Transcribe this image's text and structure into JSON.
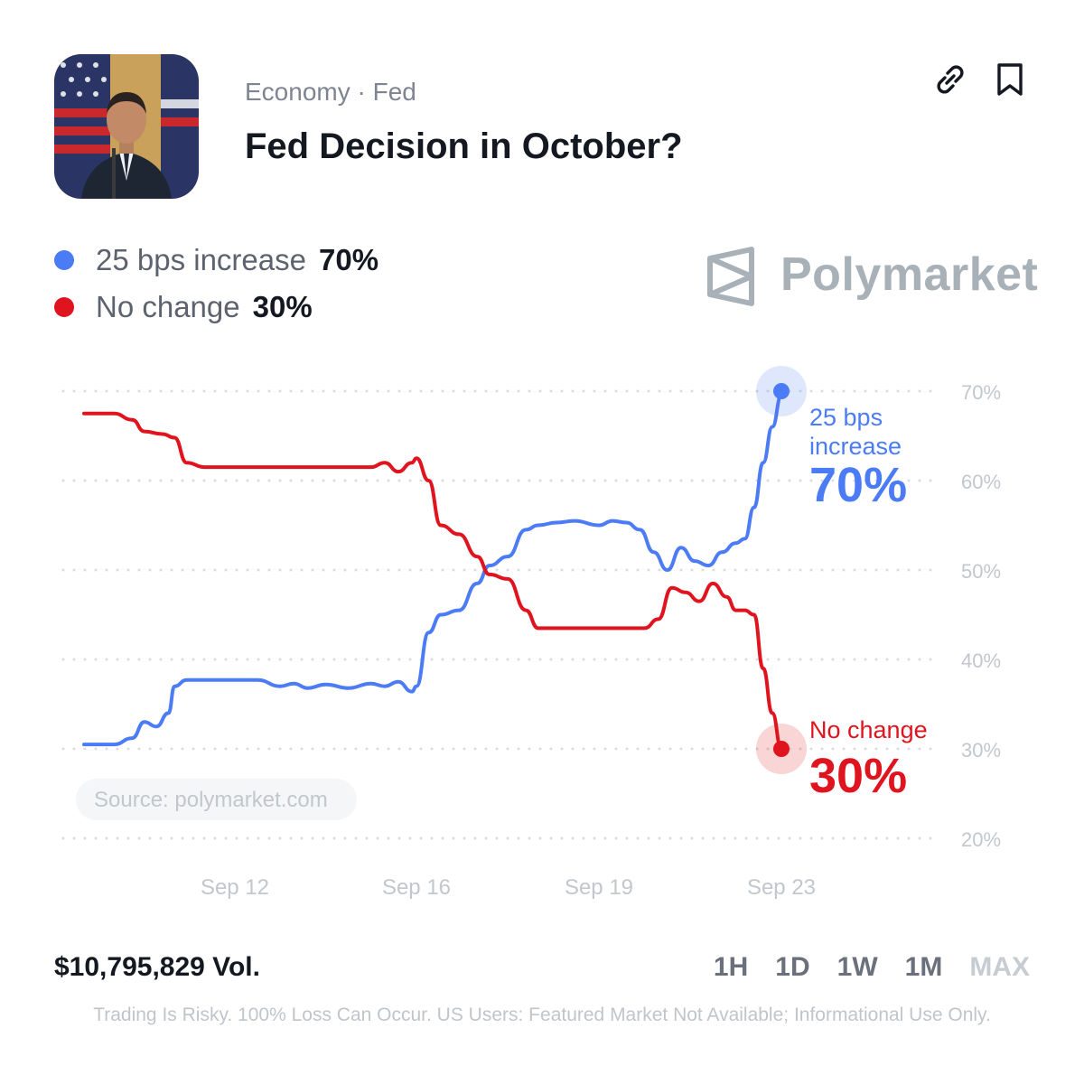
{
  "header": {
    "category": "Economy · Fed",
    "title": "Fed Decision in October?"
  },
  "legend": [
    {
      "label": "25 bps increase",
      "value": "70%",
      "color": "#4b7bf5"
    },
    {
      "label": "No change",
      "value": "30%",
      "color": "#e0141e"
    }
  ],
  "brand": {
    "name": "Polymarket",
    "color": "#a8b0b8"
  },
  "chart_data": {
    "type": "line",
    "ylim": [
      20,
      70
    ],
    "yticks": [
      "70%",
      "60%",
      "50%",
      "40%",
      "30%",
      "20%"
    ],
    "xticks": [
      "Sep 12",
      "Sep 16",
      "Sep 19",
      "Sep 23"
    ],
    "source": "Source: polymarket.com",
    "grid": true,
    "series": [
      {
        "name": "25 bps increase",
        "color": "#4b7bf5",
        "end_label_line1": "25 bps",
        "end_label_line2": "increase",
        "end_value": "70%",
        "x": [
          9.5,
          9.8,
          10.0,
          10.3,
          10.5,
          10.7,
          10.9,
          11.0,
          11.2,
          11.5,
          12.0,
          12.5,
          13.0,
          13.3,
          13.6,
          14.0,
          14.5,
          15.0,
          15.3,
          15.6,
          15.9,
          16.0,
          16.2,
          16.4,
          16.7,
          17.0,
          17.2,
          17.5,
          17.8,
          18.0,
          18.3,
          18.6,
          19.0,
          19.3,
          19.6,
          19.9,
          20.2,
          20.5,
          20.8,
          21.1,
          21.4,
          21.7,
          22.0,
          22.2,
          22.4,
          22.6,
          22.8,
          23.0
        ],
        "values": [
          30.5,
          30.5,
          30.5,
          31.2,
          33.0,
          32.5,
          34.0,
          37.0,
          37.7,
          37.7,
          37.7,
          37.7,
          37.0,
          37.3,
          36.8,
          37.2,
          36.8,
          37.3,
          37.0,
          37.5,
          36.4,
          37.0,
          43.0,
          45.0,
          45.5,
          48.5,
          50.5,
          51.5,
          54.5,
          55.0,
          55.3,
          55.5,
          55.0,
          55.5,
          55.3,
          54.5,
          52.0,
          50.0,
          52.5,
          51.0,
          50.5,
          52.0,
          53.0,
          53.5,
          57.0,
          62.0,
          66.0,
          69.5
        ]
      },
      {
        "name": "No change",
        "color": "#e0141e",
        "end_label_line1": "No change",
        "end_value": "30%",
        "x": [
          9.5,
          10.0,
          10.3,
          10.5,
          10.8,
          11.0,
          11.2,
          11.5,
          12.0,
          12.5,
          13.0,
          13.5,
          14.0,
          14.5,
          15.0,
          15.3,
          15.6,
          15.9,
          16.0,
          16.2,
          16.4,
          16.7,
          17.0,
          17.2,
          17.5,
          17.8,
          18.0,
          18.3,
          18.6,
          19.0,
          19.5,
          20.0,
          20.3,
          20.6,
          20.9,
          21.2,
          21.5,
          21.8,
          22.0,
          22.2,
          22.4,
          22.6,
          22.8,
          23.0
        ],
        "values": [
          67.5,
          67.5,
          66.8,
          65.5,
          65.2,
          64.8,
          62.0,
          61.5,
          61.5,
          61.5,
          61.5,
          61.5,
          61.5,
          61.5,
          61.5,
          62.0,
          61.0,
          62.0,
          62.5,
          60.0,
          55.0,
          54.0,
          51.5,
          49.5,
          49.0,
          45.5,
          43.5,
          43.5,
          43.5,
          43.5,
          43.5,
          43.5,
          44.5,
          48.0,
          47.5,
          46.5,
          48.5,
          47.0,
          45.5,
          45.5,
          45.0,
          39.0,
          34.0,
          30.0
        ]
      }
    ]
  },
  "footer": {
    "volume": "$10,795,829 Vol.",
    "ranges": [
      {
        "label": "1H",
        "active": false
      },
      {
        "label": "1D",
        "active": false
      },
      {
        "label": "1W",
        "active": false
      },
      {
        "label": "1M",
        "active": false
      },
      {
        "label": "MAX",
        "active": true
      }
    ],
    "disclaimer": "Trading Is Risky. 100% Loss Can Occur. US Users: Featured Market Not Available; Informational Use Only."
  }
}
